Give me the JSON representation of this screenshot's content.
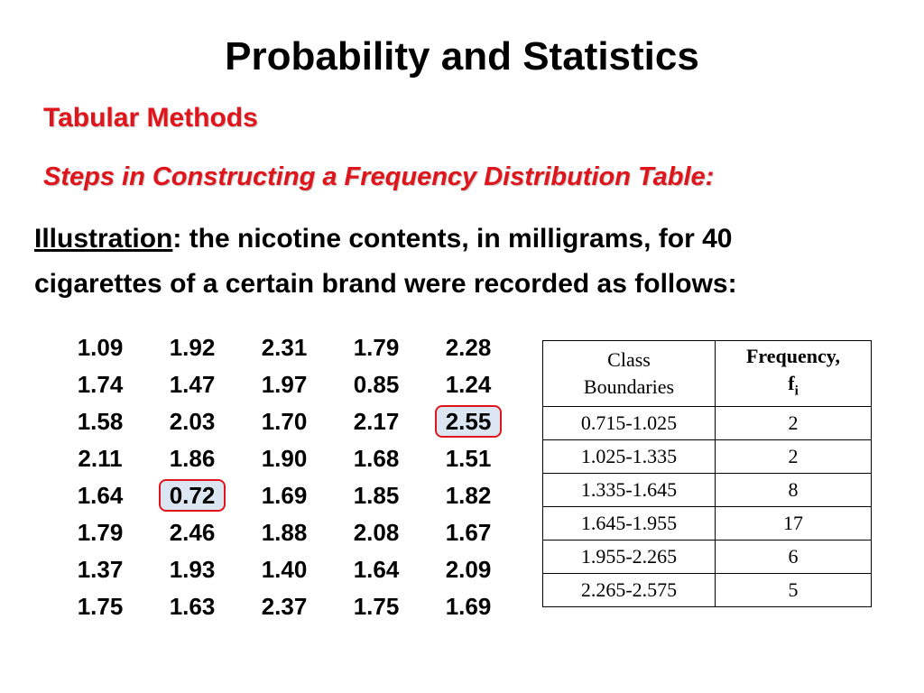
{
  "slide": {
    "title": "Probability and Statistics",
    "subtitle": "Tabular Methods",
    "steps_heading": "Steps in Constructing a Frequency Distribution Table:",
    "illustration_label": "Illustration",
    "illustration_text_line1": ": the nicotine contents, in milligrams, for 40",
    "illustration_text_line2": "cigarettes of a certain brand were recorded as follows:"
  },
  "nicotine_data": {
    "rows": [
      [
        "1.09",
        "1.92",
        "2.31",
        "1.79",
        "2.28"
      ],
      [
        "1.74",
        "1.47",
        "1.97",
        "0.85",
        "1.24"
      ],
      [
        "1.58",
        "2.03",
        "1.70",
        "2.17",
        "2.55"
      ],
      [
        "2.11",
        "1.86",
        "1.90",
        "1.68",
        "1.51"
      ],
      [
        "1.64",
        "0.72",
        "1.69",
        "1.85",
        "1.82"
      ],
      [
        "1.79",
        "2.46",
        "1.88",
        "2.08",
        "1.67"
      ],
      [
        "1.37",
        "1.93",
        "1.40",
        "1.64",
        "2.09"
      ],
      [
        "1.75",
        "1.63",
        "2.37",
        "1.75",
        "1.69"
      ]
    ],
    "highlighted": [
      "2.55",
      "0.72"
    ]
  },
  "frequency_table": {
    "headers": {
      "class_line1": "Class",
      "class_line2": "Boundaries",
      "freq_line1": "Frequency,",
      "freq_symbol": "f",
      "freq_sub": "i"
    },
    "rows": [
      {
        "class": "0.715-1.025",
        "freq": "2"
      },
      {
        "class": "1.025-1.335",
        "freq": "2"
      },
      {
        "class": "1.335-1.645",
        "freq": "8"
      },
      {
        "class": "1.645-1.955",
        "freq": "17"
      },
      {
        "class": "1.955-2.265",
        "freq": "6"
      },
      {
        "class": "2.265-2.575",
        "freq": "5"
      }
    ]
  },
  "colors": {
    "accent_red": "#e0151c",
    "highlight_fill": "#dce6f2"
  }
}
